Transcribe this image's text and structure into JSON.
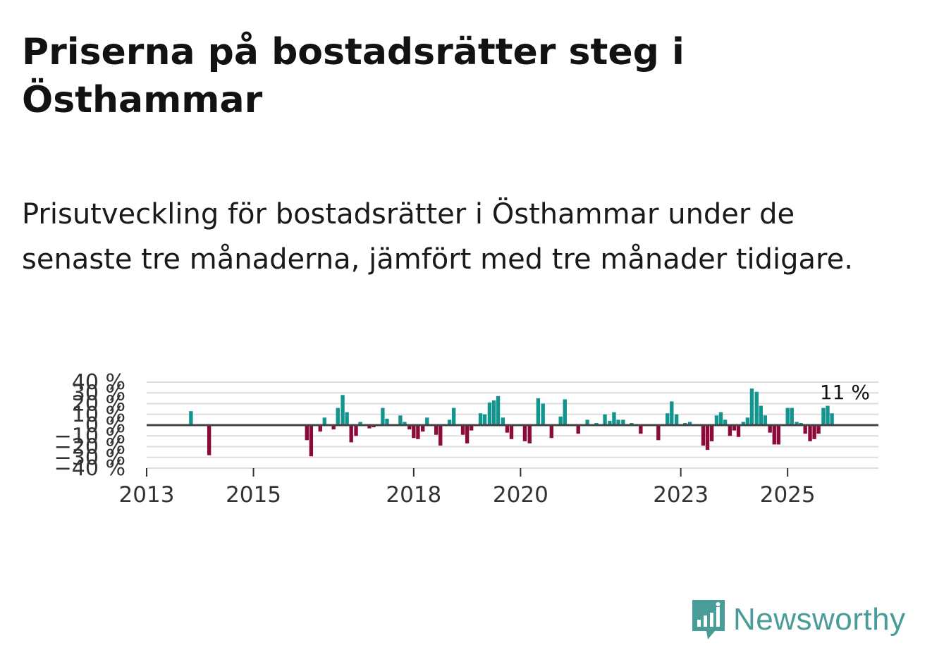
{
  "title": "Priserna på bostadsrätter steg i Östhammar",
  "subtitle": "Prisutveckling för bostadsrätter i Östhammar under de senaste tre månaderna, jämfört med tre månader tidigare.",
  "brand": {
    "name": "Newsworthy",
    "color": "#4a9c98"
  },
  "colors": {
    "positive": "#12958e",
    "negative": "#8b0a3a",
    "grid": "#dddddd",
    "zero": "#444444"
  },
  "chart_data": {
    "type": "bar",
    "title": "Priserna på bostadsrätter steg i Östhammar",
    "xlabel": "",
    "ylabel": "",
    "ylim": [
      -40,
      40
    ],
    "y_ticks": [
      40,
      30,
      20,
      10,
      0,
      -10,
      -20,
      -30,
      -40
    ],
    "y_tick_labels": [
      "40 %",
      "30 %",
      "20 %",
      "10 %",
      "0 %",
      "−10 %",
      "−20 %",
      "−30 %",
      "−40 %"
    ],
    "x_range": [
      2013,
      2026.7
    ],
    "x_ticks": [
      2013,
      2015,
      2018,
      2020,
      2023,
      2025
    ],
    "x_tick_labels": [
      "2013",
      "2015",
      "2018",
      "2020",
      "2023",
      "2025"
    ],
    "last_value_label": "11 %",
    "series": [
      {
        "name": "Prisutveckling",
        "points": [
          {
            "x": 2013.83,
            "v": 13
          },
          {
            "x": 2014.17,
            "v": -28
          },
          {
            "x": 2016.0,
            "v": -14
          },
          {
            "x": 2016.08,
            "v": -29
          },
          {
            "x": 2016.25,
            "v": -6
          },
          {
            "x": 2016.33,
            "v": 7
          },
          {
            "x": 2016.5,
            "v": -4
          },
          {
            "x": 2016.58,
            "v": 16
          },
          {
            "x": 2016.67,
            "v": 28
          },
          {
            "x": 2016.75,
            "v": 12
          },
          {
            "x": 2016.83,
            "v": -16
          },
          {
            "x": 2016.92,
            "v": -10
          },
          {
            "x": 2017.0,
            "v": 3
          },
          {
            "x": 2017.17,
            "v": -3
          },
          {
            "x": 2017.25,
            "v": -2
          },
          {
            "x": 2017.42,
            "v": 16
          },
          {
            "x": 2017.5,
            "v": 6
          },
          {
            "x": 2017.75,
            "v": 9
          },
          {
            "x": 2017.83,
            "v": 3
          },
          {
            "x": 2017.92,
            "v": -4
          },
          {
            "x": 2018.0,
            "v": -12
          },
          {
            "x": 2018.08,
            "v": -13
          },
          {
            "x": 2018.17,
            "v": -6
          },
          {
            "x": 2018.25,
            "v": 7
          },
          {
            "x": 2018.42,
            "v": -9
          },
          {
            "x": 2018.5,
            "v": -19
          },
          {
            "x": 2018.67,
            "v": 5
          },
          {
            "x": 2018.75,
            "v": 16
          },
          {
            "x": 2018.92,
            "v": -9
          },
          {
            "x": 2019.0,
            "v": -17
          },
          {
            "x": 2019.08,
            "v": -5
          },
          {
            "x": 2019.25,
            "v": 11
          },
          {
            "x": 2019.33,
            "v": 10
          },
          {
            "x": 2019.42,
            "v": 21
          },
          {
            "x": 2019.5,
            "v": 23
          },
          {
            "x": 2019.58,
            "v": 27
          },
          {
            "x": 2019.67,
            "v": 7
          },
          {
            "x": 2019.75,
            "v": -7
          },
          {
            "x": 2019.83,
            "v": -13
          },
          {
            "x": 2020.08,
            "v": -15
          },
          {
            "x": 2020.17,
            "v": -17
          },
          {
            "x": 2020.33,
            "v": 25
          },
          {
            "x": 2020.42,
            "v": 20
          },
          {
            "x": 2020.58,
            "v": -12
          },
          {
            "x": 2020.75,
            "v": 8
          },
          {
            "x": 2020.83,
            "v": 24
          },
          {
            "x": 2021.08,
            "v": -8
          },
          {
            "x": 2021.25,
            "v": 5
          },
          {
            "x": 2021.42,
            "v": 2
          },
          {
            "x": 2021.58,
            "v": 10
          },
          {
            "x": 2021.67,
            "v": 4
          },
          {
            "x": 2021.75,
            "v": 12
          },
          {
            "x": 2021.83,
            "v": 5
          },
          {
            "x": 2021.92,
            "v": 5
          },
          {
            "x": 2022.08,
            "v": 2
          },
          {
            "x": 2022.25,
            "v": -8
          },
          {
            "x": 2022.58,
            "v": -14
          },
          {
            "x": 2022.75,
            "v": 11
          },
          {
            "x": 2022.83,
            "v": 22
          },
          {
            "x": 2022.92,
            "v": 10
          },
          {
            "x": 2023.08,
            "v": 2
          },
          {
            "x": 2023.17,
            "v": 3
          },
          {
            "x": 2023.42,
            "v": -19
          },
          {
            "x": 2023.5,
            "v": -23
          },
          {
            "x": 2023.58,
            "v": -15
          },
          {
            "x": 2023.67,
            "v": 9
          },
          {
            "x": 2023.75,
            "v": 12
          },
          {
            "x": 2023.83,
            "v": 5
          },
          {
            "x": 2023.92,
            "v": -10
          },
          {
            "x": 2024.0,
            "v": -5
          },
          {
            "x": 2024.08,
            "v": -11
          },
          {
            "x": 2024.17,
            "v": 3
          },
          {
            "x": 2024.25,
            "v": 7
          },
          {
            "x": 2024.33,
            "v": 34
          },
          {
            "x": 2024.42,
            "v": 31
          },
          {
            "x": 2024.5,
            "v": 18
          },
          {
            "x": 2024.58,
            "v": 9
          },
          {
            "x": 2024.67,
            "v": -7
          },
          {
            "x": 2024.75,
            "v": -18
          },
          {
            "x": 2024.83,
            "v": -18
          },
          {
            "x": 2025.0,
            "v": 16
          },
          {
            "x": 2025.08,
            "v": 16
          },
          {
            "x": 2025.17,
            "v": 3
          },
          {
            "x": 2025.25,
            "v": 2
          },
          {
            "x": 2025.33,
            "v": -8
          },
          {
            "x": 2025.42,
            "v": -15
          },
          {
            "x": 2025.5,
            "v": -13
          },
          {
            "x": 2025.58,
            "v": -8
          },
          {
            "x": 2025.67,
            "v": 16
          },
          {
            "x": 2025.75,
            "v": 18
          },
          {
            "x": 2025.83,
            "v": 11
          }
        ]
      }
    ]
  }
}
